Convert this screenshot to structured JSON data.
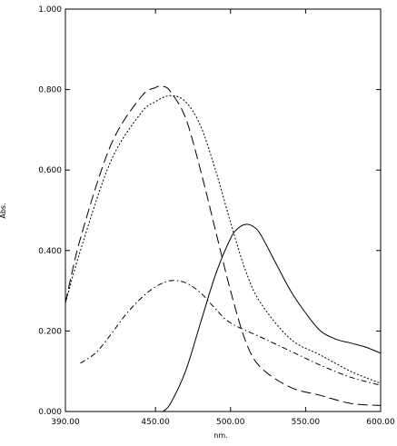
{
  "chart_data": {
    "type": "line",
    "title": "",
    "xlabel": "nm.",
    "ylabel": "Abs.",
    "xlim": [
      390,
      600
    ],
    "ylim": [
      0,
      1
    ],
    "x_ticks": [
      390,
      450,
      500,
      550,
      600
    ],
    "x_tick_labels": [
      "390.00",
      "450.00",
      "500.00",
      "550.00",
      "600.00"
    ],
    "y_ticks": [
      0,
      0.2,
      0.4,
      0.6,
      0.8,
      1.0
    ],
    "y_tick_labels": [
      "0.000",
      "0.200",
      "0.400",
      "0.600",
      "0.800",
      "1.000"
    ],
    "grid": false,
    "legend": "none",
    "series": [
      {
        "line_style": "long-dash",
        "x": [
          385,
          400,
          420,
          440,
          450,
          455,
          460,
          470,
          480,
          490,
          500,
          510,
          520,
          540,
          560,
          580,
          600
        ],
        "y": [
          0.27,
          0.43,
          0.66,
          0.78,
          0.805,
          0.808,
          0.795,
          0.73,
          0.6,
          0.45,
          0.3,
          0.175,
          0.11,
          0.06,
          0.04,
          0.02,
          0.015
        ]
      },
      {
        "line_style": "dotted",
        "x": [
          385,
          400,
          420,
          440,
          450,
          460,
          470,
          480,
          490,
          500,
          510,
          520,
          540,
          560,
          580,
          600
        ],
        "y": [
          0.27,
          0.4,
          0.62,
          0.74,
          0.77,
          0.785,
          0.77,
          0.71,
          0.6,
          0.47,
          0.35,
          0.27,
          0.18,
          0.14,
          0.1,
          0.07
        ]
      },
      {
        "line_style": "dash-dot",
        "x": [
          400,
          410,
          420,
          430,
          440,
          450,
          460,
          470,
          480,
          490,
          500,
          520,
          540,
          560,
          580,
          600
        ],
        "y": [
          0.12,
          0.145,
          0.19,
          0.24,
          0.28,
          0.31,
          0.325,
          0.32,
          0.295,
          0.255,
          0.22,
          0.185,
          0.15,
          0.115,
          0.085,
          0.065
        ]
      },
      {
        "line_style": "solid",
        "x": [
          455,
          460,
          470,
          480,
          490,
          500,
          505,
          510,
          515,
          520,
          530,
          540,
          550,
          560,
          570,
          580,
          590,
          600
        ],
        "y": [
          0.0,
          0.02,
          0.1,
          0.22,
          0.34,
          0.43,
          0.455,
          0.465,
          0.46,
          0.44,
          0.37,
          0.3,
          0.245,
          0.2,
          0.18,
          0.17,
          0.16,
          0.145
        ]
      }
    ]
  }
}
